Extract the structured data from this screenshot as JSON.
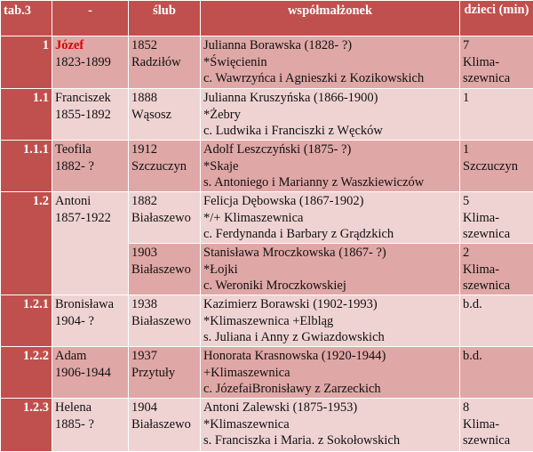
{
  "header": {
    "tab": "tab.3",
    "person": "-",
    "wedding": "ślub",
    "spouse": "współmałżonek",
    "children": "dzieci (min)"
  },
  "rows": [
    {
      "id": "1",
      "name": "Józef",
      "years": "1823-1899",
      "marriages": [
        {
          "year": "1852",
          "place": "Radziłów",
          "spouse": "Julianna Borawska (1828- ?)",
          "birth": "*Święcienin",
          "parents": "c. Wawrzyńca i Agnieszki z Kozikowskich",
          "children_1": "7",
          "children_2": "Klima-",
          "children_3": "szewnica"
        }
      ]
    },
    {
      "id": "1.1",
      "name": "Franciszek",
      "years": "1855-1892",
      "marriages": [
        {
          "year": "1888",
          "place": "Wąsosz",
          "spouse": "Julianna Kruszyńska (1866-1900)",
          "birth": "*Żebry",
          "parents": "c. Ludwika i Franciszki z Węcków",
          "children_1": "1",
          "children_2": "",
          "children_3": ""
        }
      ]
    },
    {
      "id": "1.1.1",
      "name": "Teofila",
      "years": "1882- ?",
      "marriages": [
        {
          "year": "1912",
          "place": "Szczuczyn",
          "spouse": "Adolf Leszczyński (1875- ?)",
          "birth": "*Skaje",
          "parents": "s. Antoniego i Marianny z Waszkiewiczów",
          "children_1": "1",
          "children_2": "Szczuczyn",
          "children_3": ""
        }
      ]
    },
    {
      "id": "1.2",
      "name": "Antoni",
      "years": "1857-1922",
      "marriages": [
        {
          "year": "1882",
          "place": "Białaszewo",
          "spouse": "Felicja Dębowska (1867-1902)",
          "birth": "*/+ Klimaszewnica",
          "parents": "c. Ferdynanda i Barbary z Grądzkich",
          "children_1": "5",
          "children_2": "Klima-",
          "children_3": "szewnica"
        },
        {
          "year": "1903",
          "place": "Białaszewo",
          "spouse": "Stanisława Mroczkowska (1867- ?)",
          "birth": "*Łojki",
          "parents": "c. Weroniki Mroczkowskiej",
          "children_1": "2",
          "children_2": "Klima-",
          "children_3": "szewnica"
        }
      ]
    },
    {
      "id": "1.2.1",
      "name": "Bronisława",
      "years": "1904- ?",
      "marriages": [
        {
          "year": "1938",
          "place": "Białaszewo",
          "spouse": "Kazimierz Borawski (1902-1993)",
          "birth": "*Klimaszewnica +Elbląg",
          "parents": "s. Juliana i Anny z Gwiazdowskich",
          "children_1": "b.d.",
          "children_2": "",
          "children_3": ""
        }
      ]
    },
    {
      "id": "1.2.2",
      "name": "Adam",
      "years": "1906-1944",
      "marriages": [
        {
          "year": "1937",
          "place": "Przytuły",
          "spouse": "Honorata Krasnowska (1920-1944)",
          "birth": "+Klimaszewnica",
          "parents": "c. JózefaiBronisławy z Zarzeckich",
          "children_1": "b.d.",
          "children_2": "",
          "children_3": ""
        }
      ]
    },
    {
      "id": "1.2.3",
      "name": "Helena",
      "years": "1885- ?",
      "marriages": [
        {
          "year": "1904",
          "place": "Białaszewo",
          "spouse": "Antoni Zalewski (1875-1953)",
          "birth": "*Klimaszewnica",
          "parents": "s. Franciszka i Maria. z Sokołowskich",
          "children_1": "8",
          "children_2": "Klima-",
          "children_3": "szewnica"
        }
      ]
    }
  ],
  "colors": {
    "header_bg": "#c0504d",
    "row_dark": "#dfa7a6",
    "row_light": "#efd3d2",
    "highlight_text": "#e00000"
  }
}
